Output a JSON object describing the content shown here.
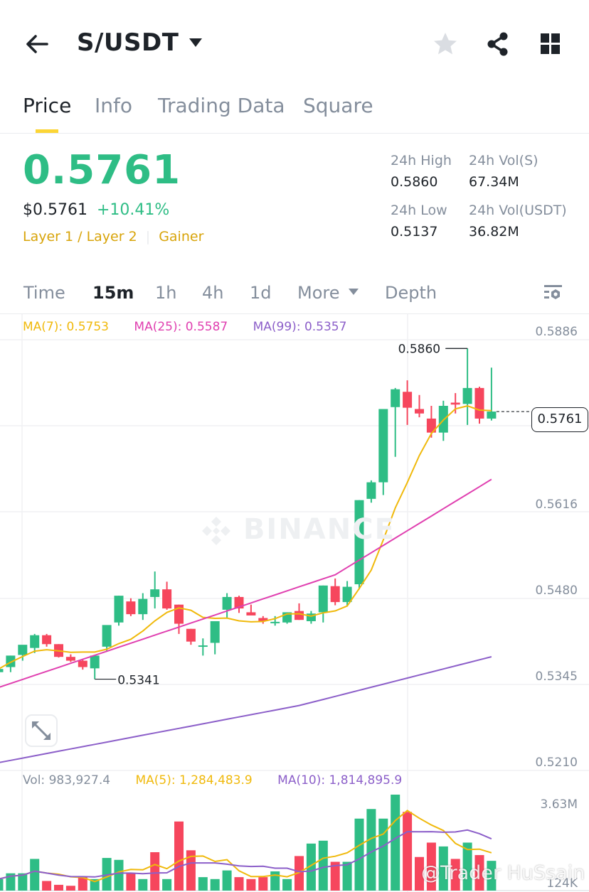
{
  "header": {
    "pair": "S/USDT",
    "icons": [
      "back-arrow-icon",
      "caret-down-icon",
      "star-icon",
      "share-icon",
      "grid-icon"
    ]
  },
  "tabs": [
    {
      "label": "Price",
      "active": true
    },
    {
      "label": "Info",
      "active": false
    },
    {
      "label": "Trading Data",
      "active": false
    },
    {
      "label": "Square",
      "active": false
    }
  ],
  "ticker": {
    "last_price": "0.5761",
    "fiat_price": "$0.5761",
    "change_pct": "+10.41%",
    "tag_category": "Layer 1 / Layer 2",
    "tag_separator": "|",
    "tag_gainer": "Gainer",
    "colors": {
      "up": "#2ebd85",
      "down": "#f6465d",
      "tag": "#d8a40a"
    }
  },
  "stats": {
    "high_label": "24h High",
    "high_value": "0.5860",
    "low_label": "24h Low",
    "low_value": "0.5137",
    "vol_base_label": "24h Vol(S)",
    "vol_base_value": "67.34M",
    "vol_quote_label": "24h Vol(USDT)",
    "vol_quote_value": "36.82M"
  },
  "intervals": [
    {
      "label": "Time",
      "active": false
    },
    {
      "label": "15m",
      "active": true
    },
    {
      "label": "1h",
      "active": false
    },
    {
      "label": "4h",
      "active": false
    },
    {
      "label": "1d",
      "active": false
    },
    {
      "label": "More",
      "active": false
    },
    {
      "label": "Depth",
      "active": false
    }
  ],
  "legend": {
    "ma7": "MA(7): 0.5753",
    "ma25": "MA(25): 0.5587",
    "ma99": "MA(99): 0.5357",
    "vol": "Vol: 983,927.4",
    "vol_ma5": "MA(5): 1,284,483.9",
    "vol_ma10": "MA(10): 1,814,895.9",
    "colors": {
      "ma7": "#f0b90b",
      "ma25": "#e040b0",
      "ma99": "#8c5fc9",
      "vol": "#848e9c"
    }
  },
  "axis": {
    "price_ticks": [
      "0.5886",
      "0.5616",
      "0.5480",
      "0.5345",
      "0.5210"
    ],
    "volume_ticks": [
      "3.63M",
      "124K"
    ],
    "current_price_tag": "0.5761",
    "high_marker": "0.5860",
    "low_marker": "0.5341"
  },
  "watermark": "BINANCE",
  "credit": "@Trader HuSsain",
  "chart_data": {
    "type": "candlestick",
    "title": "S/USDT 15m",
    "ylim": [
      0.521,
      0.5886
    ],
    "price_ticks": [
      0.5886,
      0.5616,
      0.548,
      0.5345,
      0.521
    ],
    "candles": [
      {
        "o": 0.5352,
        "h": 0.5356,
        "l": 0.5344,
        "c": 0.5357
      },
      {
        "o": 0.536,
        "h": 0.5378,
        "l": 0.5352,
        "c": 0.5378
      },
      {
        "o": 0.5379,
        "h": 0.5391,
        "l": 0.537,
        "c": 0.5395
      },
      {
        "o": 0.539,
        "h": 0.5412,
        "l": 0.5382,
        "c": 0.541
      },
      {
        "o": 0.541,
        "h": 0.5412,
        "l": 0.5392,
        "c": 0.5396
      },
      {
        "o": 0.5396,
        "h": 0.5396,
        "l": 0.5375,
        "c": 0.5376
      },
      {
        "o": 0.5376,
        "h": 0.538,
        "l": 0.5368,
        "c": 0.537
      },
      {
        "o": 0.537,
        "h": 0.5372,
        "l": 0.5356,
        "c": 0.536
      },
      {
        "o": 0.5358,
        "h": 0.5378,
        "l": 0.5341,
        "c": 0.5378
      },
      {
        "o": 0.5392,
        "h": 0.5416,
        "l": 0.5385,
        "c": 0.5426
      },
      {
        "o": 0.543,
        "h": 0.5472,
        "l": 0.5425,
        "c": 0.5472
      },
      {
        "o": 0.5463,
        "h": 0.5468,
        "l": 0.544,
        "c": 0.5443
      },
      {
        "o": 0.5443,
        "h": 0.5476,
        "l": 0.5434,
        "c": 0.5467
      },
      {
        "o": 0.547,
        "h": 0.551,
        "l": 0.5452,
        "c": 0.5482
      },
      {
        "o": 0.5482,
        "h": 0.5494,
        "l": 0.545,
        "c": 0.5452
      },
      {
        "o": 0.5458,
        "h": 0.5458,
        "l": 0.5412,
        "c": 0.5428
      },
      {
        "o": 0.542,
        "h": 0.542,
        "l": 0.5395,
        "c": 0.54
      },
      {
        "o": 0.5393,
        "h": 0.5405,
        "l": 0.5378,
        "c": 0.5394
      },
      {
        "o": 0.5398,
        "h": 0.543,
        "l": 0.538,
        "c": 0.5432
      },
      {
        "o": 0.545,
        "h": 0.5476,
        "l": 0.5436,
        "c": 0.547
      },
      {
        "o": 0.547,
        "h": 0.5472,
        "l": 0.5445,
        "c": 0.5452
      },
      {
        "o": 0.5446,
        "h": 0.5458,
        "l": 0.5442,
        "c": 0.5441
      },
      {
        "o": 0.5437,
        "h": 0.544,
        "l": 0.5428,
        "c": 0.5432
      },
      {
        "o": 0.543,
        "h": 0.544,
        "l": 0.5425,
        "c": 0.5431
      },
      {
        "o": 0.543,
        "h": 0.5446,
        "l": 0.5428,
        "c": 0.5446
      },
      {
        "o": 0.5448,
        "h": 0.546,
        "l": 0.5434,
        "c": 0.5434
      },
      {
        "o": 0.5432,
        "h": 0.5448,
        "l": 0.5428,
        "c": 0.5444
      },
      {
        "o": 0.5446,
        "h": 0.5488,
        "l": 0.543,
        "c": 0.5488
      },
      {
        "o": 0.5487,
        "h": 0.5499,
        "l": 0.5457,
        "c": 0.5462
      },
      {
        "o": 0.5462,
        "h": 0.5495,
        "l": 0.5455,
        "c": 0.5486
      },
      {
        "o": 0.549,
        "h": 0.5622,
        "l": 0.5482,
        "c": 0.5622
      },
      {
        "o": 0.5624,
        "h": 0.5653,
        "l": 0.5618,
        "c": 0.565
      },
      {
        "o": 0.565,
        "h": 0.576,
        "l": 0.563,
        "c": 0.5765
      },
      {
        "o": 0.5768,
        "h": 0.5798,
        "l": 0.569,
        "c": 0.5796
      },
      {
        "o": 0.5792,
        "h": 0.581,
        "l": 0.574,
        "c": 0.5767
      },
      {
        "o": 0.5765,
        "h": 0.5787,
        "l": 0.5752,
        "c": 0.5758
      },
      {
        "o": 0.575,
        "h": 0.577,
        "l": 0.572,
        "c": 0.5728
      },
      {
        "o": 0.5728,
        "h": 0.5778,
        "l": 0.5715,
        "c": 0.577
      },
      {
        "o": 0.5775,
        "h": 0.579,
        "l": 0.5758,
        "c": 0.5772
      },
      {
        "o": 0.5773,
        "h": 0.586,
        "l": 0.574,
        "c": 0.5798
      },
      {
        "o": 0.5798,
        "h": 0.58,
        "l": 0.5742,
        "c": 0.575
      },
      {
        "o": 0.575,
        "h": 0.583,
        "l": 0.5747,
        "c": 0.5761
      }
    ],
    "series": [
      {
        "name": "MA(7)",
        "last": 0.5753
      },
      {
        "name": "MA(25)",
        "last": 0.5587
      },
      {
        "name": "MA(99)",
        "last": 0.5357
      }
    ],
    "volume": {
      "ylim": [
        0.124,
        3.63
      ],
      "unit": "M",
      "bars_rel": [
        0.12,
        0.18,
        0.18,
        0.33,
        0.1,
        0.06,
        0.05,
        0.14,
        0.12,
        0.34,
        0.32,
        0.18,
        0.12,
        0.4,
        0.12,
        0.72,
        0.42,
        0.14,
        0.12,
        0.21,
        0.14,
        0.12,
        0.14,
        0.2,
        0.12,
        0.36,
        0.49,
        0.52,
        0.3,
        0.3,
        0.75,
        0.85,
        0.75,
        1.0,
        0.82,
        0.35,
        0.5,
        0.46,
        0.33,
        0.5,
        0.37,
        0.31
      ],
      "bars_up": [
        1,
        1,
        1,
        1,
        0,
        0,
        0,
        0,
        1,
        1,
        1,
        0,
        1,
        0,
        1,
        0,
        0,
        1,
        1,
        1,
        0,
        0,
        0,
        1,
        1,
        0,
        1,
        1,
        0,
        1,
        1,
        1,
        1,
        1,
        0,
        0,
        0,
        1,
        0,
        1,
        0,
        1
      ]
    }
  }
}
